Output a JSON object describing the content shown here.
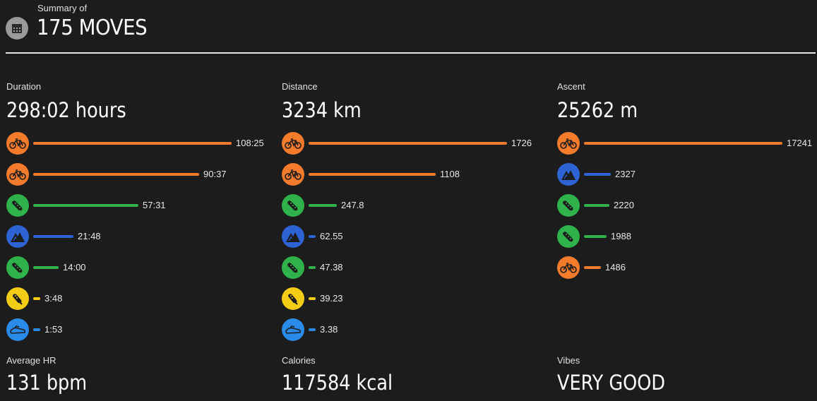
{
  "header": {
    "subtitle": "Summary of",
    "title": "175 MOVES"
  },
  "colors": {
    "orange": "#f37b2b",
    "green": "#2fb24c",
    "blue": "#2d63d4",
    "yellow": "#f5cc14",
    "lightblue": "#2a8ae8"
  },
  "chart_data": [
    {
      "type": "bar",
      "title": "Duration",
      "total": "298:02 hours",
      "series": [
        {
          "activity": "cycling-icon",
          "color": "orange",
          "label": "108:25",
          "value": 108.42
        },
        {
          "activity": "cycling-icon",
          "color": "orange",
          "label": "90:37",
          "value": 90.62
        },
        {
          "activity": "running-shoe-icon",
          "color": "green",
          "label": "57:31",
          "value": 57.52
        },
        {
          "activity": "mountain-icon",
          "color": "blue",
          "label": "21:48",
          "value": 21.8
        },
        {
          "activity": "running-shoe-icon",
          "color": "green",
          "label": "14:00",
          "value": 14.0
        },
        {
          "activity": "trail-shoe-icon",
          "color": "yellow",
          "label": "3:48",
          "value": 3.8
        },
        {
          "activity": "shoe-icon",
          "color": "lightblue",
          "label": "1:53",
          "value": 1.88
        }
      ]
    },
    {
      "type": "bar",
      "title": "Distance",
      "total": "3234 km",
      "series": [
        {
          "activity": "cycling-icon",
          "color": "orange",
          "label": "1726",
          "value": 1726
        },
        {
          "activity": "cycling-icon",
          "color": "orange",
          "label": "1108",
          "value": 1108
        },
        {
          "activity": "running-shoe-icon",
          "color": "green",
          "label": "247.8",
          "value": 247.8
        },
        {
          "activity": "mountain-icon",
          "color": "blue",
          "label": "62.55",
          "value": 62.55
        },
        {
          "activity": "running-shoe-icon",
          "color": "green",
          "label": "47.38",
          "value": 47.38
        },
        {
          "activity": "trail-shoe-icon",
          "color": "yellow",
          "label": "39.23",
          "value": 39.23
        },
        {
          "activity": "shoe-icon",
          "color": "lightblue",
          "label": "3.38",
          "value": 3.38
        }
      ]
    },
    {
      "type": "bar",
      "title": "Ascent",
      "total": "25262 m",
      "series": [
        {
          "activity": "cycling-icon",
          "color": "orange",
          "label": "17241",
          "value": 17241
        },
        {
          "activity": "mountain-icon",
          "color": "blue",
          "label": "2327",
          "value": 2327
        },
        {
          "activity": "running-shoe-icon",
          "color": "green",
          "label": "2220",
          "value": 2220
        },
        {
          "activity": "running-shoe-icon",
          "color": "green",
          "label": "1988",
          "value": 1988
        },
        {
          "activity": "cycling-icon",
          "color": "orange",
          "label": "1486",
          "value": 1486
        }
      ]
    }
  ],
  "bottom": {
    "hr_label": "Average HR",
    "hr_value": "131 bpm",
    "cal_label": "Calories",
    "cal_value": "117584 kcal",
    "vibes_label": "Vibes",
    "vibes_value": "VERY GOOD"
  }
}
